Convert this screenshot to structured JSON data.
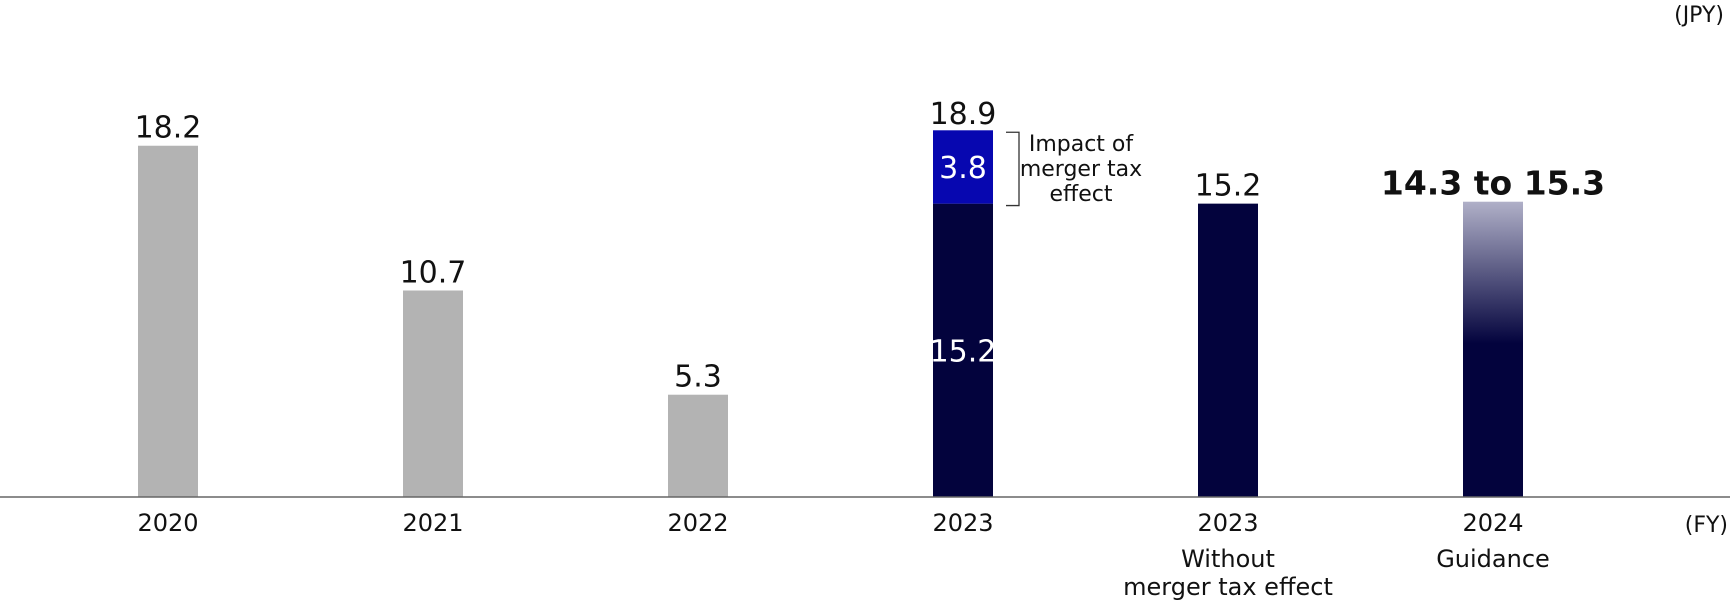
{
  "chart_data": {
    "type": "bar",
    "unit_label": "(JPY)",
    "x_unit_label": "(FY)",
    "categories": [
      {
        "year": "2020",
        "sublabel": ""
      },
      {
        "year": "2021",
        "sublabel": ""
      },
      {
        "year": "2022",
        "sublabel": ""
      },
      {
        "year": "2023",
        "sublabel": ""
      },
      {
        "year": "2023",
        "sublabel": "Without merger tax effect",
        "sublabel_lines": [
          "Without",
          "merger tax effect"
        ]
      },
      {
        "year": "2024",
        "sublabel": "Guidance"
      }
    ],
    "bars": [
      {
        "value": 18.2,
        "label": "18.2",
        "style": "past"
      },
      {
        "value": 10.7,
        "label": "10.7",
        "style": "past"
      },
      {
        "value": 5.3,
        "label": "5.3",
        "style": "past"
      },
      {
        "value": 18.9,
        "label": "18.9",
        "style": "stacked",
        "segments": [
          {
            "value": 15.2,
            "label": "15.2",
            "color": "#03033d"
          },
          {
            "value": 3.8,
            "label": "3.8",
            "color": "#0707b0"
          }
        ]
      },
      {
        "value": 15.2,
        "label": "15.2",
        "style": "current"
      },
      {
        "value": 15.3,
        "value_low": 14.3,
        "label": "14.3 to 15.3",
        "style": "guidance"
      }
    ],
    "annotation": {
      "text": "Impact of merger tax effect",
      "lines": [
        "Impact of",
        "merger tax",
        "effect"
      ]
    },
    "colors": {
      "past": "#b3b3b3",
      "current": "#03033d",
      "merger": "#0707b0",
      "guidance_top": "#b0b0c8",
      "axis": "#666666"
    },
    "ylim": [
      0,
      20
    ],
    "grid": false,
    "legend": "none"
  }
}
